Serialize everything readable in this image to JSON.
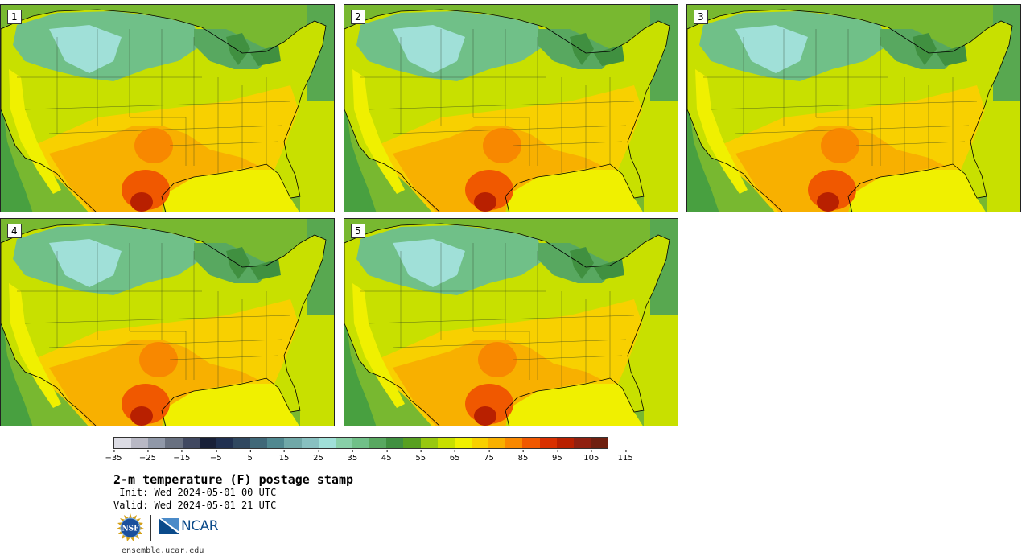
{
  "panels": [
    {
      "label": "1"
    },
    {
      "label": "2"
    },
    {
      "label": "3"
    },
    {
      "label": "4"
    },
    {
      "label": "5"
    }
  ],
  "colorbar": {
    "colors": [
      "#dcdce4",
      "#b8b8c4",
      "#9098a8",
      "#687080",
      "#404860",
      "#182038",
      "#203050",
      "#304860",
      "#406878",
      "#508890",
      "#70a8a8",
      "#88c0c0",
      "#a0e0d8",
      "#88d0a8",
      "#70c088",
      "#58a860",
      "#409040",
      "#58a020",
      "#98c810",
      "#c8e000",
      "#f0f000",
      "#f8d000",
      "#f8b000",
      "#f88800",
      "#f05800",
      "#d83000",
      "#b82000",
      "#902010",
      "#702010"
    ],
    "tick_labels": [
      "−35",
      "−25",
      "−15",
      "−5",
      "5",
      "15",
      "25",
      "35",
      "45",
      "55",
      "65",
      "75",
      "85",
      "95",
      "105",
      "115"
    ]
  },
  "title": "2-m temperature (F) postage stamp",
  "init_line": " Init: Wed 2024-05-01 00 UTC",
  "valid_line": "Valid: Wed 2024-05-01 21 UTC",
  "logos": {
    "nsf_text": "NSF",
    "ncar_text": "NCAR"
  },
  "website": "ensemble.ucar.edu"
}
